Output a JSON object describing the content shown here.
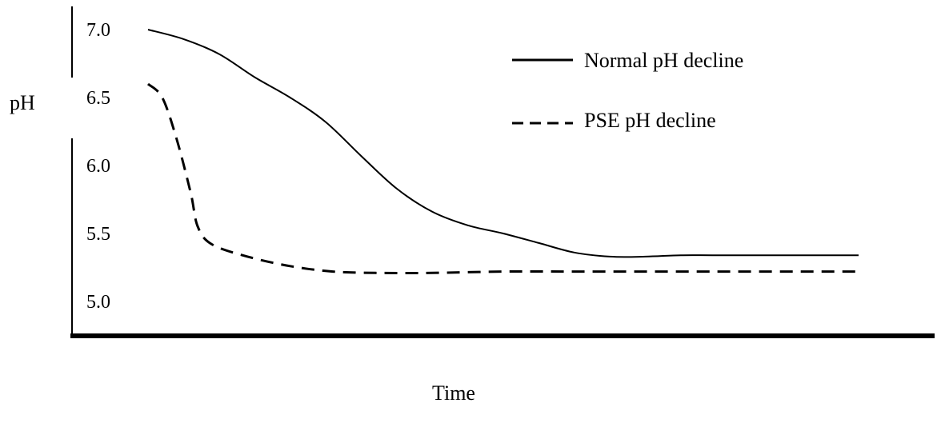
{
  "chart_data": {
    "type": "line",
    "title": "",
    "xlabel": "Time",
    "ylabel": "pH",
    "y_ticks": [
      "7.0",
      "6.5",
      "6.0",
      "5.5",
      "5.0"
    ],
    "ylim": [
      4.8,
      7.1
    ],
    "x_ticks": [],
    "grid": false,
    "legend_position": "top-right",
    "series": [
      {
        "name": "Normal pH decline",
        "line_style": "solid",
        "color": "#000000",
        "points": [
          [
            0,
            7.0
          ],
          [
            0.05,
            6.93
          ],
          [
            0.1,
            6.82
          ],
          [
            0.15,
            6.65
          ],
          [
            0.2,
            6.5
          ],
          [
            0.25,
            6.32
          ],
          [
            0.3,
            6.07
          ],
          [
            0.35,
            5.83
          ],
          [
            0.4,
            5.66
          ],
          [
            0.45,
            5.56
          ],
          [
            0.5,
            5.5
          ],
          [
            0.55,
            5.43
          ],
          [
            0.6,
            5.36
          ],
          [
            0.65,
            5.33
          ],
          [
            0.7,
            5.33
          ],
          [
            0.75,
            5.34
          ],
          [
            0.8,
            5.34
          ],
          [
            0.9,
            5.34
          ],
          [
            1.0,
            5.34
          ]
        ]
      },
      {
        "name": "PSE pH decline",
        "line_style": "dashed",
        "color": "#000000",
        "points": [
          [
            0,
            6.6
          ],
          [
            0.02,
            6.5
          ],
          [
            0.04,
            6.2
          ],
          [
            0.06,
            5.8
          ],
          [
            0.07,
            5.55
          ],
          [
            0.09,
            5.42
          ],
          [
            0.14,
            5.33
          ],
          [
            0.2,
            5.26
          ],
          [
            0.26,
            5.22
          ],
          [
            0.32,
            5.21
          ],
          [
            0.4,
            5.21
          ],
          [
            0.5,
            5.22
          ],
          [
            0.6,
            5.22
          ],
          [
            0.8,
            5.22
          ],
          [
            1.0,
            5.22
          ]
        ]
      }
    ]
  }
}
